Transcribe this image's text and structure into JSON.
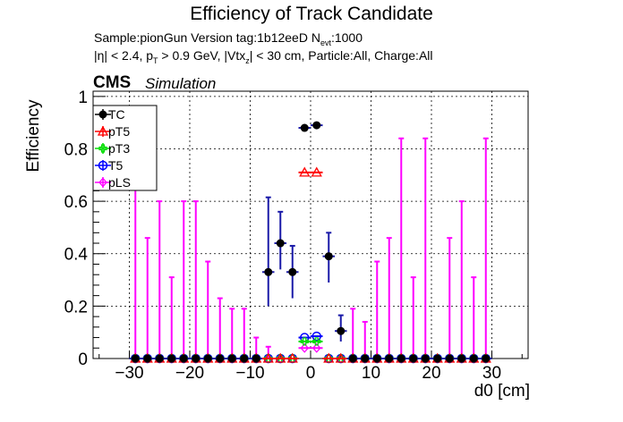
{
  "header": {
    "title": "Efficiency of Track Candidate",
    "sample_line": "Sample:pionGun   Version tag:1b12eeD  N",
    "nevt_sub": "evt",
    "nevt_value": ":1000",
    "cuts_eta": "|η| < 2.4, p",
    "cuts_pt_sub": "T",
    "cuts_mid": " > 0.9 GeV, |Vtx",
    "cuts_vtx_sub": "z",
    "cuts_tail": "| < 30 cm, Particle:All, Charge:All",
    "cms": "CMS",
    "simulation": "Simulation"
  },
  "colors": {
    "TC": "#000000",
    "TC_err": "#1a1aa8",
    "pT5": "#ff0000",
    "pT3": "#00dd00",
    "T5": "#0000ff",
    "pLS": "#ff00ff"
  },
  "chart_data": {
    "type": "scatter",
    "xlabel": "d0 [cm]",
    "ylabel": "Efficiency",
    "xlim": [
      -36,
      36
    ],
    "ylim": [
      0,
      1.02
    ],
    "xticks": [
      -30,
      -20,
      -10,
      0,
      10,
      20,
      30
    ],
    "xtick_labels": [
      "−30",
      "−20",
      "−10",
      "0",
      "10",
      "20",
      "30"
    ],
    "yticks": [
      0,
      0.2,
      0.4,
      0.6,
      0.8,
      1
    ],
    "ytick_labels": [
      "0",
      "0.2",
      "0.4",
      "0.6",
      "0.8",
      "1"
    ],
    "grid": true,
    "legend_position": "top-left",
    "legend": [
      "TC",
      "pT5",
      "pT3",
      "T5",
      "pLS"
    ],
    "x": [
      -29,
      -27,
      -25,
      -23,
      -21,
      -19,
      -17,
      -15,
      -13,
      -11,
      -9,
      -7,
      -5,
      -3,
      -1,
      1,
      3,
      5,
      7,
      9,
      11,
      13,
      15,
      17,
      19,
      21,
      23,
      25,
      27,
      29
    ],
    "series": [
      {
        "name": "TC",
        "marker": "filled-circle",
        "values": [
          0,
          0,
          0,
          0,
          0,
          0,
          0,
          0,
          0,
          0,
          0,
          0.33,
          0.44,
          0.33,
          0.88,
          0.89,
          0.39,
          0.105,
          0,
          0,
          0,
          0,
          0,
          0,
          0,
          0,
          0,
          0,
          0,
          0
        ],
        "err_up": [
          0,
          0,
          0,
          0,
          0,
          0,
          0,
          0,
          0,
          0,
          0,
          0.285,
          0.12,
          0.1,
          0,
          0,
          0.09,
          0.06,
          0,
          0,
          0,
          0,
          0,
          0,
          0,
          0,
          0,
          0,
          0,
          0
        ],
        "err_down": [
          0,
          0,
          0,
          0,
          0,
          0,
          0,
          0,
          0,
          0,
          0,
          0.13,
          0.1,
          0.1,
          0,
          0,
          0.1,
          0.04,
          0,
          0,
          0,
          0,
          0,
          0,
          0,
          0,
          0,
          0,
          0,
          0
        ]
      },
      {
        "name": "pT5",
        "marker": "open-triangle",
        "values": [
          0,
          0,
          0,
          0,
          0,
          0,
          0,
          0,
          0,
          0,
          0,
          0,
          0,
          0,
          0.71,
          0.71,
          0,
          0,
          0,
          0,
          0,
          0,
          0,
          0,
          0,
          0,
          0,
          0,
          0,
          0
        ]
      },
      {
        "name": "pT3",
        "marker": "open-cross",
        "values": [
          0,
          0,
          0,
          0,
          0,
          0,
          0,
          0,
          0,
          0,
          0,
          0,
          0,
          0,
          0.065,
          0.065,
          0,
          0,
          0,
          0,
          0,
          0,
          0,
          0,
          0,
          0,
          0,
          0,
          0,
          0
        ]
      },
      {
        "name": "T5",
        "marker": "open-circle",
        "values": [
          0,
          0,
          0,
          0,
          0,
          0,
          0,
          0,
          0,
          0,
          0,
          0,
          0,
          0,
          0.08,
          0.085,
          0,
          0,
          0,
          0,
          0,
          0,
          0,
          0,
          0,
          0,
          0,
          0,
          0,
          0
        ]
      },
      {
        "name": "pLS",
        "marker": "open-diamond",
        "values": [
          0,
          0,
          0,
          0,
          0,
          0,
          0,
          0,
          0,
          0,
          0,
          0,
          0,
          0,
          0.04,
          0.04,
          0,
          0,
          0,
          0,
          0,
          0,
          0,
          0,
          0,
          0,
          0,
          0,
          0,
          0
        ],
        "err_up": [
          0.83,
          0.46,
          0.6,
          0.31,
          0.6,
          0.6,
          0.37,
          0.23,
          0.19,
          0.19,
          0.08,
          0.045,
          0,
          0,
          0,
          0,
          0,
          0,
          0.19,
          0.14,
          0.37,
          0.46,
          0.84,
          0.31,
          0.84,
          0,
          0.46,
          0.6,
          0.31,
          0.84
        ]
      }
    ]
  }
}
